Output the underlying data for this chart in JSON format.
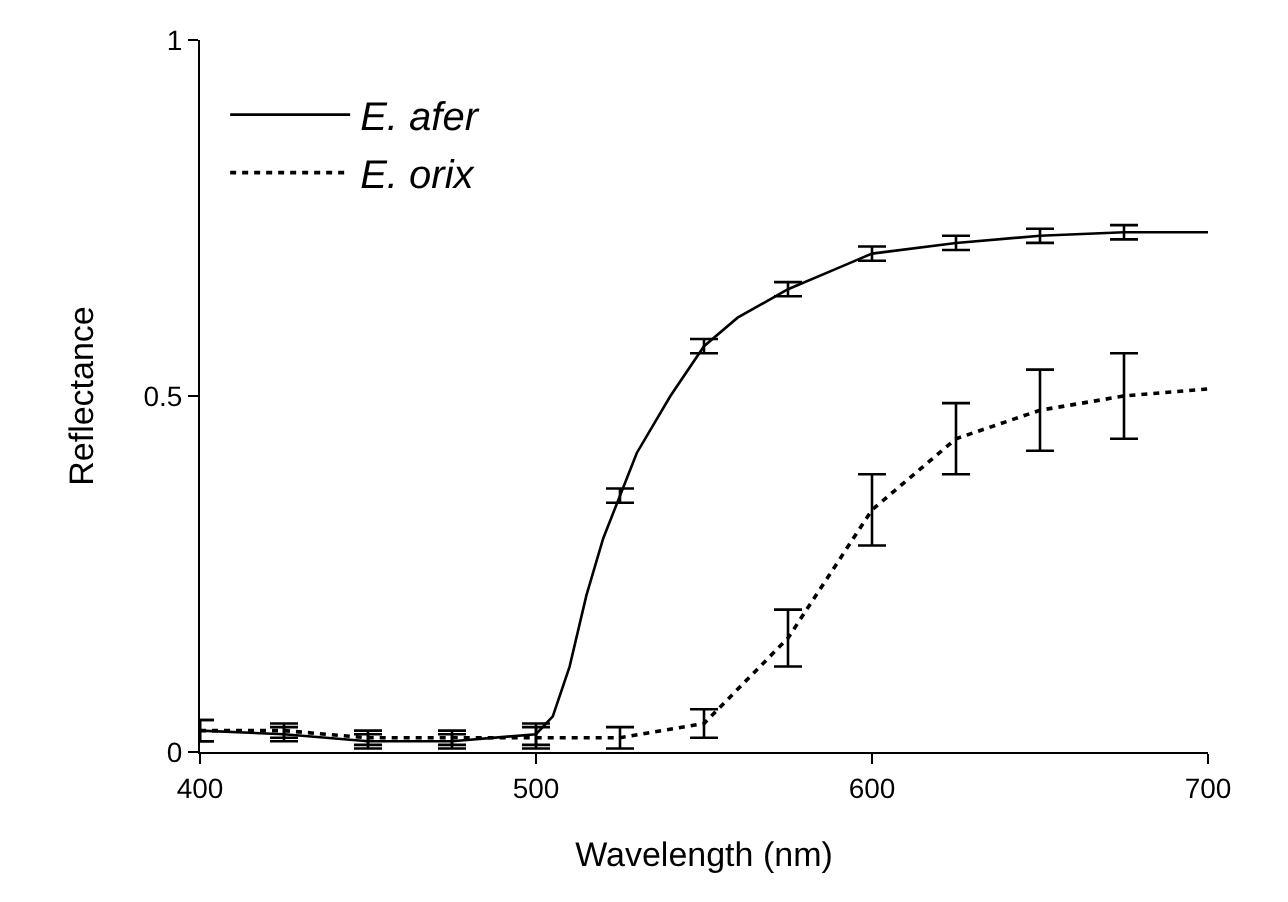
{
  "chart_data": {
    "type": "line",
    "xlabel": "Wavelength (nm)",
    "ylabel": "Reflectance",
    "xlim": [
      400,
      700
    ],
    "xticks": [
      400,
      500,
      600,
      700
    ],
    "ylim": [
      0,
      1
    ],
    "yticks": [
      0,
      0.5,
      1
    ],
    "legend": "top left",
    "marker": "none",
    "series": [
      {
        "name": "E. afer",
        "color": "#000000",
        "line_style": "solid",
        "x": [
          400,
          425,
          450,
          475,
          500,
          505,
          510,
          515,
          520,
          525,
          530,
          540,
          550,
          560,
          575,
          590,
          600,
          625,
          650,
          675,
          700
        ],
        "values": [
          0.03,
          0.025,
          0.015,
          0.015,
          0.025,
          0.05,
          0.12,
          0.22,
          0.3,
          0.36,
          0.42,
          0.5,
          0.57,
          0.61,
          0.65,
          0.68,
          0.7,
          0.715,
          0.725,
          0.73,
          0.73
        ],
        "errors": [
          0.015,
          0.01,
          0.01,
          0.01,
          0.015,
          null,
          null,
          null,
          null,
          0.01,
          null,
          null,
          0.01,
          null,
          0.01,
          null,
          0.01,
          0.01,
          0.01,
          0.01,
          null
        ]
      },
      {
        "name": "E. orix",
        "color": "#000000",
        "line_style": "dotted",
        "x": [
          400,
          425,
          450,
          475,
          500,
          525,
          550,
          575,
          600,
          625,
          650,
          675,
          700
        ],
        "values": [
          0.03,
          0.03,
          0.02,
          0.02,
          0.02,
          0.02,
          0.04,
          0.16,
          0.34,
          0.44,
          0.48,
          0.5,
          0.51
        ],
        "errors": [
          0.015,
          0.01,
          0.01,
          0.01,
          0.015,
          0.015,
          0.02,
          0.04,
          0.05,
          0.05,
          0.057,
          0.06,
          null
        ]
      }
    ]
  }
}
